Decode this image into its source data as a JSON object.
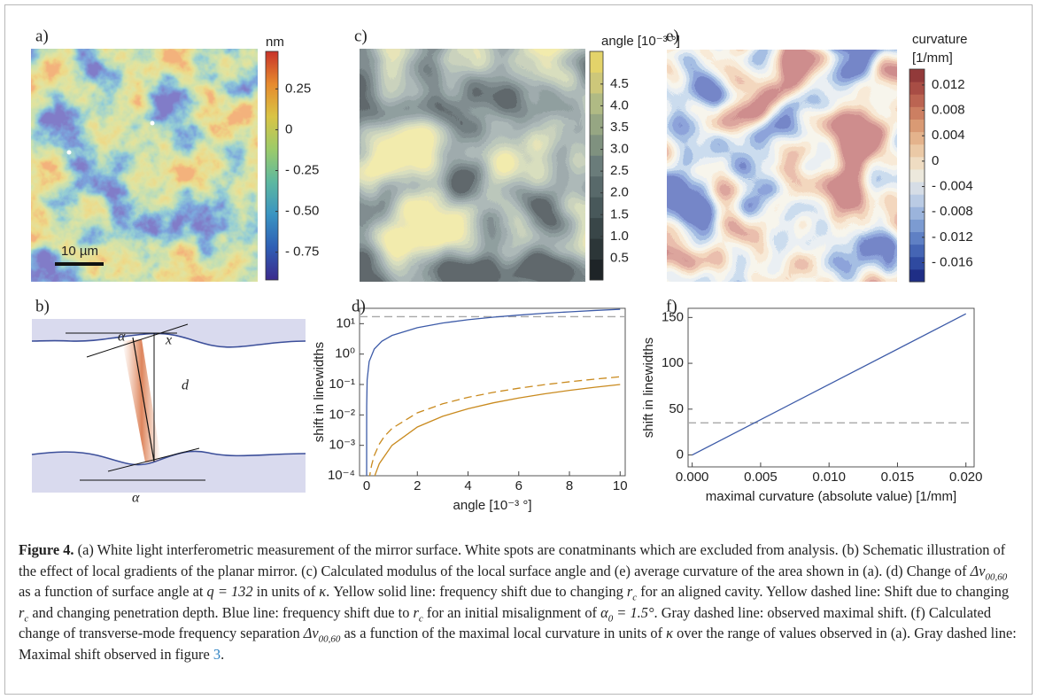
{
  "panels": {
    "a": {
      "label": "a)",
      "scale_bar": "10 µm",
      "colorbar": {
        "title": "nm",
        "clim": [
          -0.92,
          0.48
        ],
        "discrete": false,
        "ticks": [
          0.25,
          0,
          {
            "value": -0.25,
            "label": "- 0.25"
          },
          {
            "value": -0.5,
            "label": "- 0.50"
          },
          {
            "value": -0.75,
            "label": "- 0.75"
          }
        ],
        "colormap": [
          "#3b2a8c",
          "#2f5fb5",
          "#3a94c2",
          "#5db8a0",
          "#9ccb6a",
          "#d9c445",
          "#e68a2e",
          "#c8332a"
        ]
      }
    },
    "b": {
      "label": "b)",
      "symbols": [
        "α",
        "x",
        "d",
        "α"
      ]
    },
    "c": {
      "label": "c)",
      "colorbar": {
        "title": "angle [10⁻³ °]",
        "clim": [
          0,
          5.25
        ],
        "discrete": true,
        "ticks": [
          0.5,
          {
            "value": 1,
            "label": "1.0"
          },
          1.5,
          {
            "value": 2,
            "label": "2.0"
          },
          2.5,
          {
            "value": 3,
            "label": "3.0"
          },
          3.5,
          {
            "value": 4,
            "label": "4.0"
          },
          4.5
        ],
        "colormap": [
          "#1e2427",
          "#2c3638",
          "#394648",
          "#48585a",
          "#58696a",
          "#6a7c7a",
          "#7f917f",
          "#96a683",
          "#b0ba84",
          "#cdc77a",
          "#e3d36a"
        ]
      }
    },
    "e": {
      "label": "e)",
      "colorbar": {
        "title": [
          "curvature",
          "[1/mm]"
        ],
        "clim": [
          -0.019,
          0.0145
        ],
        "discrete": true,
        "ticks": [
          0.012,
          0.008,
          0.004,
          0,
          {
            "value": -0.004,
            "label": "- 0.004"
          },
          {
            "value": -0.008,
            "label": "- 0.008"
          },
          {
            "value": -0.012,
            "label": "- 0.012"
          },
          {
            "value": -0.016,
            "label": "- 0.016"
          }
        ],
        "colormap": [
          "#1f2e86",
          "#2f4aa0",
          "#4565b4",
          "#5f80c4",
          "#7c9bd1",
          "#9bb4dc",
          "#bacbe4",
          "#d6dde6",
          "#ece8dc",
          "#efdcc2",
          "#ebc9a6",
          "#e4b38c",
          "#d99a74",
          "#cc7f62",
          "#bb6452",
          "#a84d45",
          "#923a3a"
        ]
      }
    }
  },
  "chart_data": [
    {
      "type": "line",
      "panel_label": "d)",
      "xlabel": "angle [10⁻³ °]",
      "ylabel": "shift in linewidths",
      "ylog": true,
      "xlim": [
        -0.28,
        10.2
      ],
      "ylim": [
        0.0001,
        32
      ],
      "xticks": [
        0,
        2,
        4,
        6,
        8,
        10
      ],
      "yticks": [
        {
          "value": 10,
          "label": "10¹"
        },
        {
          "value": 1,
          "label": "10⁰"
        },
        {
          "value": 0.1,
          "label": "10⁻¹"
        },
        {
          "value": 0.01,
          "label": "10⁻²"
        },
        {
          "value": 0.001,
          "label": "10⁻³"
        },
        {
          "value": 0.0001,
          "label": "10⁻⁴"
        }
      ],
      "series": [
        {
          "color": "#3d5ba8",
          "dash": false,
          "x": [
            2e-06,
            2e-05,
            0.0002,
            0.002,
            0.02,
            0.1,
            0.3,
            0.6,
            1,
            2,
            3,
            4,
            5,
            6,
            7,
            8,
            9,
            10
          ],
          "values": [
            5.2e-05,
            0.00037,
            0.0027,
            0.0196,
            0.142,
            0.57,
            1.46,
            2.64,
            4.1,
            7.4,
            10.5,
            13.5,
            16.4,
            19.1,
            21.9,
            24.5,
            27.2,
            29.7
          ]
        },
        {
          "color": "#c98a1e",
          "dash": false,
          "x": [
            0.3,
            0.5,
            1,
            2,
            3,
            4,
            5,
            6,
            7,
            8,
            9,
            10
          ],
          "values": [
            9e-05,
            0.00025,
            0.001,
            0.004,
            0.009,
            0.016,
            0.025,
            0.036,
            0.049,
            0.064,
            0.081,
            0.1
          ]
        },
        {
          "color": "#c98a1e",
          "dash": true,
          "x": [
            0.1,
            0.15,
            0.2,
            0.3,
            0.5,
            0.7,
            1,
            2,
            3,
            4,
            5,
            6,
            7,
            8,
            9,
            10
          ],
          "values": [
            7.2e-05,
            0.000143,
            0.00023,
            0.00046,
            0.0011,
            0.00196,
            0.0036,
            0.0117,
            0.0232,
            0.0379,
            0.0553,
            0.0755,
            0.0982,
            0.123,
            0.15,
            0.18
          ]
        }
      ],
      "reference_lines": [
        {
          "value": 17,
          "color": "#a8a8a8",
          "dash": true
        }
      ]
    },
    {
      "type": "line",
      "panel_label": "f)",
      "xlabel": "maximal curvature (absolute value) [1/mm]",
      "ylabel": "shift in linewidths",
      "ylog": false,
      "xlim": [
        -0.0003,
        0.0206
      ],
      "ylim": [
        -13,
        160
      ],
      "xticks": [
        {
          "value": 0,
          "label": "0.000"
        },
        0.005,
        {
          "value": 0.01,
          "label": "0.010"
        },
        0.015,
        {
          "value": 0.02,
          "label": "0.020"
        }
      ],
      "yticks": [
        0,
        50,
        100,
        150
      ],
      "series": [
        {
          "color": "#3d5ba8",
          "dash": false,
          "x": [
            0,
            0.02
          ],
          "values": [
            0,
            154
          ]
        }
      ],
      "reference_lines": [
        {
          "value": 35,
          "color": "#a8a8a8",
          "dash": true
        }
      ]
    }
  ],
  "caption": {
    "label": "Figure 4.",
    "runs": [
      " (a) White light interferometric measurement of the mirror surface. White spots are conatminants which are excluded from analysis. (b) Schematic illustration of the effect of local gradients of the planar mirror. (c) Calculated modulus of the local surface angle and (e) average curvature of the area shown in (a). (d) Change of ",
      {
        "math": "Δν",
        "sub": "00,60"
      },
      " as a function of surface angle at ",
      {
        "math": "q = 132"
      },
      " in units of ",
      {
        "math": "κ"
      },
      ". Yellow solid line: frequency shift due to changing ",
      {
        "math": "r",
        "sub": "c"
      },
      " for an aligned cavity. Yellow dashed line: Shift due to changing ",
      {
        "math": "r",
        "sub": "c"
      },
      " and changing penetration depth. Blue line: frequency shift due to ",
      {
        "math": "r",
        "sub": "c"
      },
      " for an initial misalignment of ",
      {
        "math": "α",
        "sub": "0"
      },
      {
        "math": " = 1.5°"
      },
      ". Gray dashed line: observed maximal shift. (f) Calculated change of transverse-mode frequency separation ",
      {
        "math": "Δν",
        "sub": "00,60"
      },
      " as a function of the maximal local curvature in units of ",
      {
        "math": "κ"
      },
      " over the range of values observed in (a). Gray dashed line: Maximal shift observed in figure ",
      {
        "link": "3"
      },
      "."
    ]
  }
}
